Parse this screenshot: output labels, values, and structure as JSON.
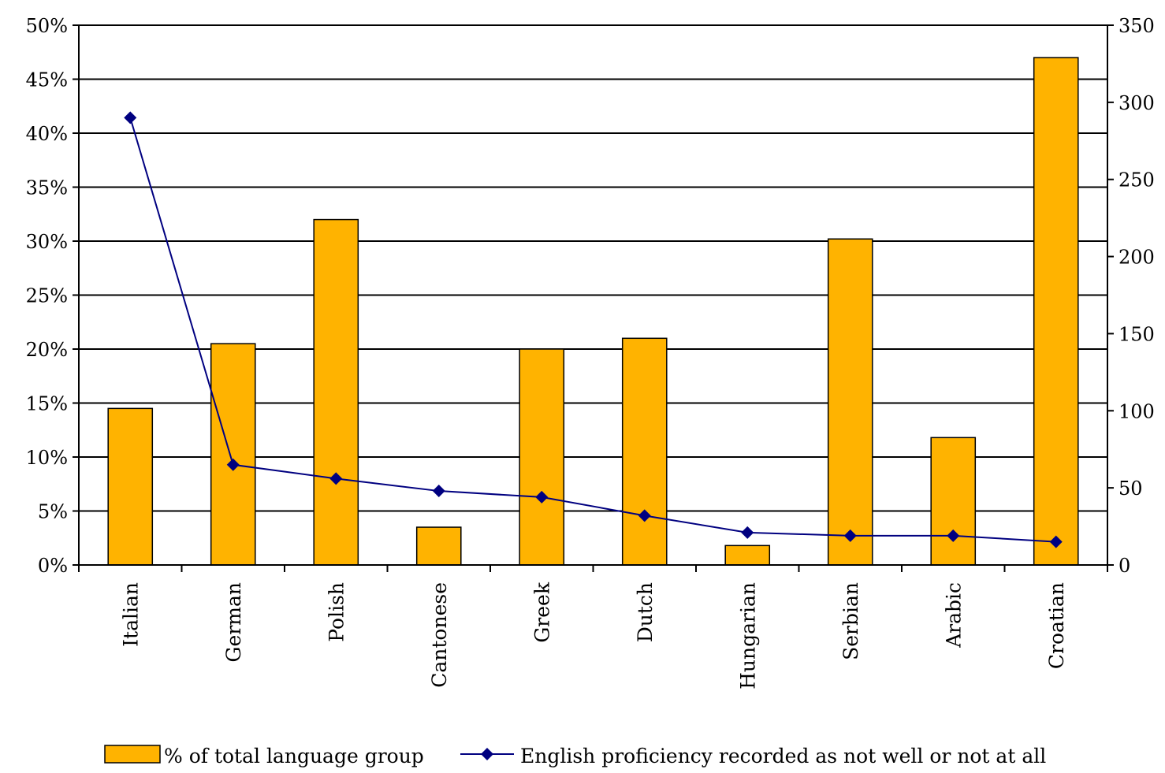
{
  "chart_data": {
    "type": "bar",
    "categories": [
      "Italian",
      "German",
      "Polish",
      "Cantonese",
      "Greek",
      "Dutch",
      "Hungarian",
      "Serbian",
      "Arabic",
      "Croatian"
    ],
    "series": [
      {
        "name": "% of total language group",
        "type": "bar",
        "axis": "left",
        "color": "#FFB300",
        "values": [
          14.5,
          20.5,
          32.0,
          3.5,
          20.0,
          21.0,
          1.8,
          30.2,
          11.8,
          47.0
        ]
      },
      {
        "name": "English proficiency recorded as not well or not at all",
        "type": "line",
        "axis": "right",
        "color": "#000080",
        "marker": "diamond",
        "values": [
          290,
          65,
          56,
          48,
          44,
          32,
          21,
          19,
          19,
          15
        ]
      }
    ],
    "y_left": {
      "ylim": [
        0,
        50
      ],
      "ticks": [
        0,
        5,
        10,
        15,
        20,
        25,
        30,
        35,
        40,
        45,
        50
      ],
      "tick_labels": [
        "0%",
        "5%",
        "10%",
        "15%",
        "20%",
        "25%",
        "30%",
        "35%",
        "40%",
        "45%",
        "50%"
      ]
    },
    "y_right": {
      "ylim": [
        0,
        350
      ],
      "ticks": [
        0,
        50,
        100,
        150,
        200,
        250,
        300,
        350
      ],
      "tick_labels": [
        "0",
        "50",
        "100",
        "150",
        "200",
        "250",
        "300",
        "350"
      ]
    },
    "grid": true,
    "legend": "bottom",
    "colors": {
      "bar_fill": "#FFB300",
      "bar_stroke": "#000000",
      "line": "#000080",
      "grid": "#000000",
      "background": "#FFFFFF"
    }
  }
}
